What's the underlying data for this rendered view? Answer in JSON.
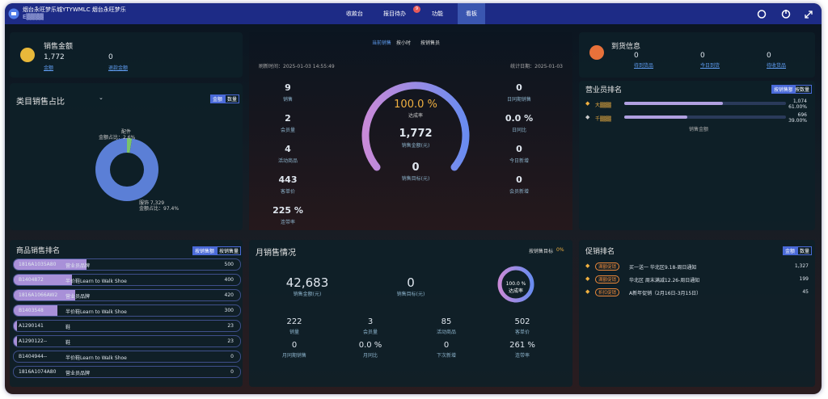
{
  "header": {
    "title": "烟台永旺梦乐城YTYWMLC 烟台永旺梦乐",
    "subtitle": "E▒▒▒▒",
    "nav": [
      "收款台",
      "报目待办",
      "功能",
      "看板"
    ],
    "badge": "9"
  },
  "sales_amount": {
    "title": "销售金额",
    "items": [
      {
        "value": "1,772",
        "label": "金额"
      },
      {
        "value": "0",
        "label": "退款金额"
      }
    ]
  },
  "category_share": {
    "title": "类目销售占比",
    "tabs": [
      "金额",
      "数量"
    ],
    "slices": [
      {
        "name": "配件",
        "label": "金额占比：2.6%",
        "value": 2.6,
        "color": "#7ac36a"
      },
      {
        "name": "服饰 7,329",
        "label": "金额占比：97.4%",
        "value": 97.4,
        "color": "#5b7fd6"
      }
    ]
  },
  "overview": {
    "tabs": [
      "当前销售",
      "按小时",
      "按销售员"
    ],
    "update_time": "刷新时间：2025-01-03 14:55:49",
    "date": "统计日期：2025-01-03",
    "left": [
      {
        "value": "9",
        "label": "销售"
      },
      {
        "value": "2",
        "label": "会员量"
      },
      {
        "value": "4",
        "label": "活动商品"
      },
      {
        "value": "443",
        "label": "客单价"
      },
      {
        "value": "225 %",
        "label": "连带率"
      }
    ],
    "gauge": {
      "percent": "100.0 %",
      "label": "达成率",
      "amount": "1,772",
      "amount_label": "销售金额(元)",
      "target": "0",
      "target_label": "销售目标(元)"
    },
    "right": [
      {
        "value": "0",
        "label": "日同期销售"
      },
      {
        "value": "0.0 %",
        "label": "日同比"
      },
      {
        "value": "0",
        "label": "今日新增"
      },
      {
        "value": "0",
        "label": "会员新增"
      }
    ]
  },
  "product_ranking": {
    "title": "商品销售排名",
    "tabs": [
      "按销售额",
      "按销售量"
    ],
    "rows": [
      {
        "code": "1816A1035A80",
        "name": "营业员品牌",
        "value": 500
      },
      {
        "code": "B1404872",
        "name": "半价鞋Learn to Walk Shoe",
        "value": 400
      },
      {
        "code": "1816A1066AW2",
        "name": "营业员品牌",
        "value": 420
      },
      {
        "code": "B1403548",
        "name": "半价鞋Learn to Walk Shoe",
        "value": 300
      },
      {
        "code": "A1290141",
        "name": "鞋",
        "value": 23
      },
      {
        "code": "A1290122--",
        "name": "鞋",
        "value": 23
      },
      {
        "code": "B1404944--",
        "name": "半价鞋Learn to Walk Shoe",
        "value": 0
      },
      {
        "code": "1816A1074A80",
        "name": "营业员品牌",
        "value": 0
      }
    ]
  },
  "monthly": {
    "title": "月销售情况",
    "badge_label": "按销售目标",
    "badge_value": "0%",
    "big": [
      {
        "value": "42,683",
        "label": "销售金额(元)"
      },
      {
        "value": "0",
        "label": "销售目标(元)"
      }
    ],
    "gauge": {
      "percent": "100.0 %",
      "label": "达成率"
    },
    "grid": [
      {
        "value": "222",
        "label": "销量"
      },
      {
        "value": "3",
        "label": "会员量"
      },
      {
        "value": "85",
        "label": "活动商品"
      },
      {
        "value": "502",
        "label": "客单价"
      },
      {
        "value": "0",
        "label": "月同期销售"
      },
      {
        "value": "0.0 %",
        "label": "月同比"
      },
      {
        "value": "0",
        "label": "下次新增"
      },
      {
        "value": "261 %",
        "label": "连带率"
      }
    ]
  },
  "arrival": {
    "title": "到货信息",
    "items": [
      {
        "value": "0",
        "label": "待到货品"
      },
      {
        "value": "0",
        "label": "今日到货"
      },
      {
        "value": "0",
        "label": "待收货品"
      }
    ]
  },
  "staff_ranking": {
    "title": "营业员排名",
    "tabs": [
      "按销售额",
      "按数量"
    ],
    "footer": "销售金额",
    "rows": [
      {
        "name": "大▒▒▒",
        "value": "1,074",
        "share": 61.0,
        "share_label": "61.00%"
      },
      {
        "name": "千▒▒▒",
        "value": "696",
        "share": 39.0,
        "share_label": "39.00%"
      }
    ]
  },
  "promo_ranking": {
    "title": "促销排名",
    "tabs": [
      "金额",
      "数量"
    ],
    "rows": [
      {
        "tag": "满额促销",
        "name": "买一送一 华北区9.18-周日通知",
        "value": "1,327"
      },
      {
        "tag": "满额促销",
        "name": "华北区 周末满减12.26-周日通知",
        "value": "199"
      },
      {
        "tag": "折扣促销",
        "name": "A新年促销（2月16日-3月15日）",
        "value": "45"
      }
    ]
  }
}
